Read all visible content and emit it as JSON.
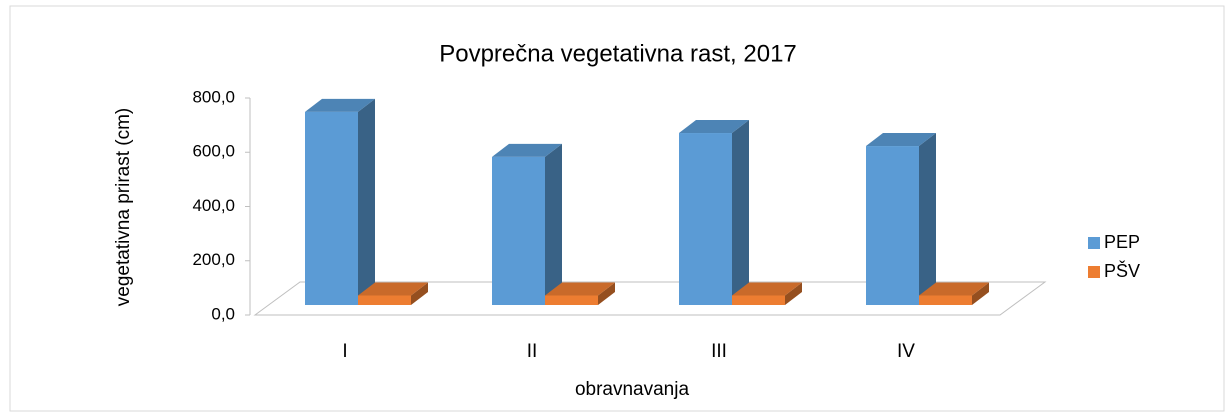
{
  "chart_data": {
    "type": "bar3d",
    "title": "Povprečna vegetativna rast, 2017",
    "x_label": "obravnavanja",
    "y_label": "vegetativna prirast (cm)",
    "categories": [
      "I",
      "II",
      "III",
      "IV"
    ],
    "series": [
      {
        "name": "PEP",
        "color": "#5b9bd5",
        "values": [
          712,
          546,
          634,
          586
        ]
      },
      {
        "name": "PŠV",
        "color": "#ed7d31",
        "values": [
          35,
          35,
          35,
          35
        ]
      }
    ],
    "ylim": [
      0,
      800
    ],
    "yticks": [
      {
        "value": 0,
        "label": "0,0"
      },
      {
        "value": 200,
        "label": "200,0"
      },
      {
        "value": 400,
        "label": "400,0"
      },
      {
        "value": 600,
        "label": "600,0"
      },
      {
        "value": 800,
        "label": "800,0"
      }
    ],
    "legend": "right"
  }
}
